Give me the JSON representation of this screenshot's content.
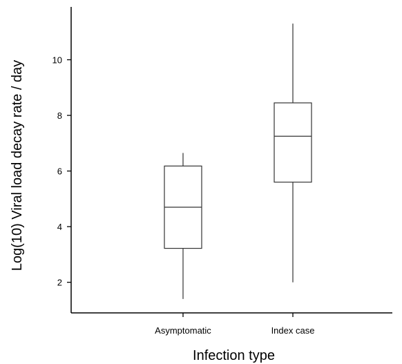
{
  "chart_data": {
    "type": "boxplot",
    "title": "",
    "xlabel": "Infection type",
    "ylabel": "Log(10) Viral load decay rate / day",
    "categories": [
      "Asymptomatic",
      "Index case"
    ],
    "boxes": [
      {
        "category": "Asymptomatic",
        "min": 1.4,
        "q1": 3.22,
        "median": 4.7,
        "q3": 6.18,
        "max": 6.65
      },
      {
        "category": "Index case",
        "min": 2.0,
        "q1": 5.6,
        "median": 7.25,
        "q3": 8.45,
        "max": 11.3
      }
    ],
    "yticks": [
      2,
      4,
      6,
      8,
      10
    ],
    "ylim": [
      0.9,
      11.9
    ],
    "grid": false,
    "legend": "none"
  }
}
